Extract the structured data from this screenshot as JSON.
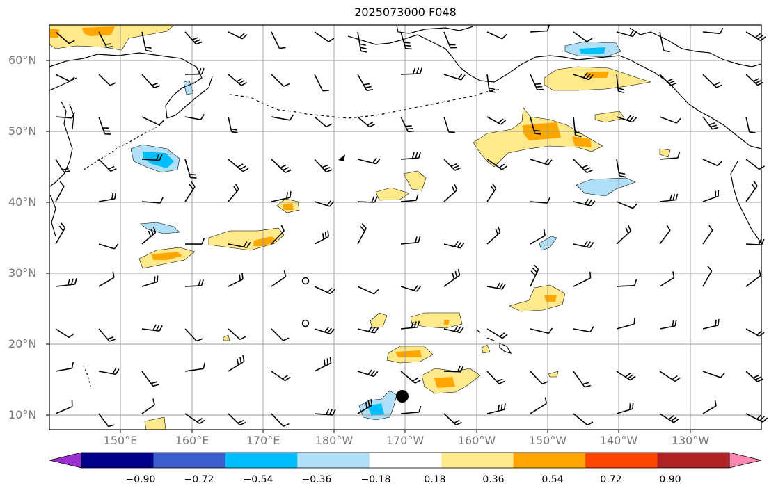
{
  "title": "2025073000 F048",
  "lat_labels": [
    "60°N",
    "50°N",
    "40°N",
    "30°N",
    "20°N",
    "10°N"
  ],
  "lon_labels": [
    "150°E",
    "160°E",
    "170°E",
    "180°W",
    "170°W",
    "160°W",
    "150°W",
    "140°W",
    "130°W"
  ],
  "colorbar": {
    "ticks": [
      "−0.90",
      "−0.72",
      "−0.54",
      "−0.36",
      "−0.18",
      "0.18",
      "0.36",
      "0.54",
      "0.72",
      "0.90"
    ],
    "colors": [
      "#9b30d0",
      "#00008b",
      "#3a5fcd",
      "#00bfff",
      "#b0e0f8",
      "#ffffff",
      "#ffe98a",
      "#ffa500",
      "#ff4500",
      "#b22222",
      "#ff88b0"
    ]
  },
  "fill_colors": {
    "light_yellow": "#ffe98a",
    "orange": "#ffa500",
    "light_blue": "#b0e0f8",
    "deep_sky_blue": "#00bfff"
  },
  "markers": [
    "open-circle",
    "open-circle",
    "filled-circle"
  ]
}
